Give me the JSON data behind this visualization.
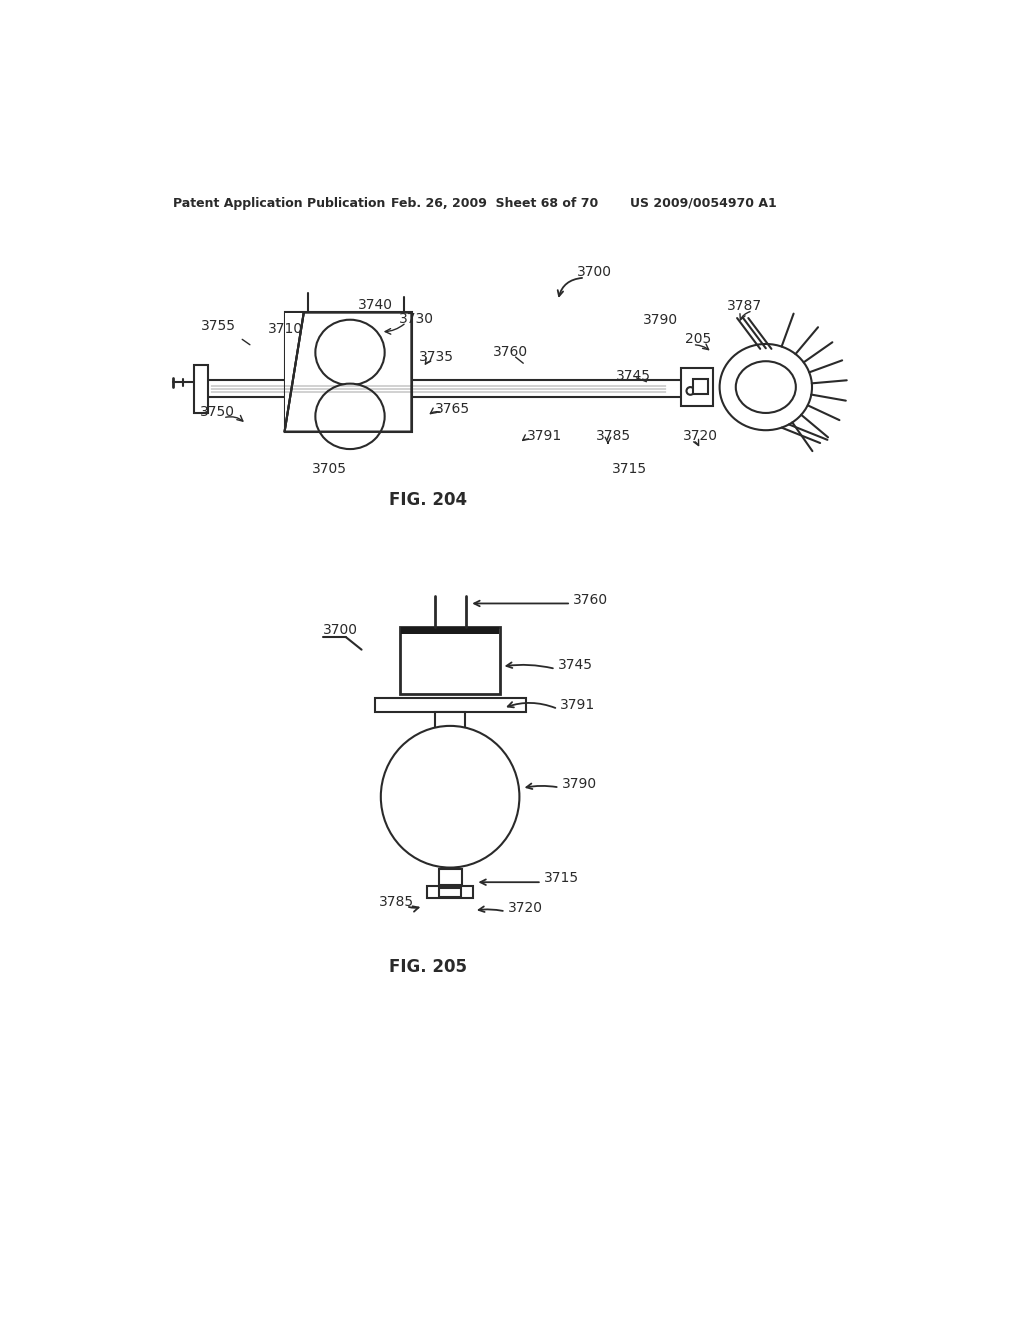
{
  "bg_color": "#ffffff",
  "header_left": "Patent Application Publication",
  "header_mid": "Feb. 26, 2009  Sheet 68 of 70",
  "header_right": "US 2009/0054970 A1",
  "fig204_label": "FIG. 204",
  "fig205_label": "FIG. 205",
  "text_color": "#1a1a1a",
  "line_color": "#2a2a2a"
}
